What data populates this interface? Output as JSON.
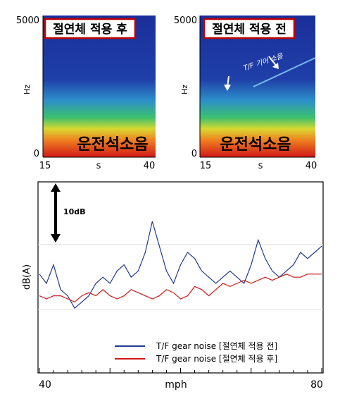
{
  "spectrogram_after": {
    "title": "절연체 적용 후",
    "y_label": "Hz",
    "y_ticks": [
      "5000",
      "0"
    ],
    "x_label": "s",
    "x_ticks": [
      "15",
      "40"
    ],
    "band_label": "운전석소음"
  },
  "spectrogram_before": {
    "title": "절연체 적용 전",
    "y_label": "Hz",
    "y_ticks": [
      "5000",
      "0"
    ],
    "x_label": "s",
    "x_ticks": [
      "15",
      "40"
    ],
    "band_label": "운전석소음",
    "annotation": "T/F 기어 소음"
  },
  "colors": {
    "before": "#1f3a8f",
    "after": "#d01818",
    "title_border": "#c00000",
    "spectro_bg": "#1a2f9a"
  },
  "chart_data": {
    "type": "line",
    "title": "",
    "xlabel": "mph",
    "ylabel": "dB(A)",
    "x_ticks": [
      "40",
      "80"
    ],
    "xlim": [
      40,
      80
    ],
    "scale_bar": "10dB",
    "legend_position": "bottom-right",
    "series": [
      {
        "name": "T/F gear noise [절연체 적용 전]",
        "x": [
          40,
          41,
          42,
          43,
          44,
          45,
          46,
          47,
          48,
          49,
          50,
          51,
          52,
          53,
          54,
          55,
          56,
          57,
          58,
          59,
          60,
          61,
          62,
          63,
          64,
          65,
          66,
          67,
          68,
          69,
          70,
          71,
          72,
          73,
          74,
          75,
          76,
          77,
          78,
          79,
          80
        ],
        "values": [
          61.5,
          60,
          63,
          59,
          58,
          56,
          57,
          58,
          60,
          61,
          60,
          62,
          63,
          61,
          62,
          65,
          70,
          66,
          62,
          60,
          63,
          65,
          64,
          62,
          61,
          60,
          61,
          62,
          61,
          60,
          63,
          67,
          64,
          62,
          61,
          62,
          63,
          65,
          64,
          65,
          66
        ]
      },
      {
        "name": "T/F gear noise [절연체 적용 후]",
        "x": [
          40,
          41,
          42,
          43,
          44,
          45,
          46,
          47,
          48,
          49,
          50,
          51,
          52,
          53,
          54,
          55,
          56,
          57,
          58,
          59,
          60,
          61,
          62,
          63,
          64,
          65,
          66,
          67,
          68,
          69,
          70,
          71,
          72,
          73,
          74,
          75,
          76,
          77,
          78,
          79,
          80
        ],
        "values": [
          58,
          57.5,
          58,
          58,
          57.5,
          57,
          58,
          58.5,
          58,
          59,
          58,
          57.5,
          58,
          59,
          58.5,
          58,
          57.5,
          58,
          59,
          58.5,
          57.5,
          58,
          59.5,
          59,
          58,
          59,
          60,
          59.5,
          60,
          60.5,
          60,
          60.5,
          61,
          60.5,
          61,
          61.5,
          61,
          61,
          61.5,
          61.5,
          61.5
        ]
      }
    ]
  }
}
